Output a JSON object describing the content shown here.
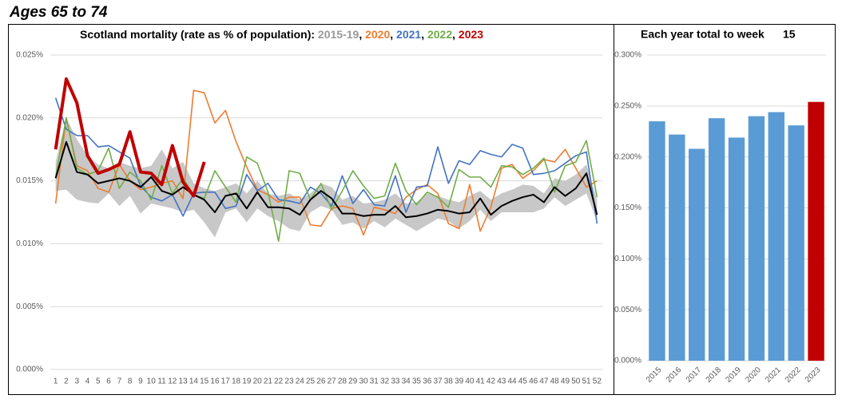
{
  "page_title": "Ages 65 to 74",
  "chart_data": [
    {
      "type": "line",
      "title": "Scotland mortality (rate as % of population):",
      "legend_separator": ", ",
      "categories": [
        1,
        2,
        3,
        4,
        5,
        6,
        7,
        8,
        9,
        10,
        11,
        12,
        13,
        14,
        15,
        16,
        17,
        18,
        19,
        20,
        21,
        22,
        23,
        24,
        25,
        26,
        27,
        28,
        29,
        30,
        31,
        32,
        33,
        34,
        35,
        36,
        37,
        38,
        39,
        40,
        41,
        42,
        43,
        44,
        45,
        46,
        47,
        48,
        49,
        50,
        51,
        52
      ],
      "ylim": [
        0,
        0.025
      ],
      "yticks": [
        {
          "value": 0,
          "label": "0.000%"
        },
        {
          "value": 0.005,
          "label": "0.005%"
        },
        {
          "value": 0.01,
          "label": "0.010%"
        },
        {
          "value": 0.015,
          "label": "0.015%"
        },
        {
          "value": 0.02,
          "label": "0.020%"
        },
        {
          "value": 0.025,
          "label": "0.025%"
        }
      ],
      "grid": true,
      "series": [
        {
          "name": "2015-19",
          "color": "#000000",
          "label_color": "#999999",
          "band_color": "#c8c8c8",
          "line_width": 2,
          "values": [
            0.0152,
            0.0181,
            0.0157,
            0.0155,
            0.0148,
            0.015,
            0.0152,
            0.015,
            0.0145,
            0.0153,
            0.0142,
            0.0139,
            0.0145,
            0.0139,
            0.0135,
            0.0125,
            0.0138,
            0.014,
            0.0128,
            0.0141,
            0.0129,
            0.0129,
            0.0128,
            0.0123,
            0.0135,
            0.0142,
            0.0136,
            0.0124,
            0.0124,
            0.0122,
            0.0123,
            0.0123,
            0.013,
            0.0121,
            0.0122,
            0.0124,
            0.0127,
            0.0126,
            0.0124,
            0.0125,
            0.0136,
            0.0123,
            0.013,
            0.0134,
            0.0137,
            0.0139,
            0.0133,
            0.0145,
            0.0138,
            0.0144,
            0.0156,
            0.0123
          ],
          "high": [
            0.0165,
            0.02,
            0.0183,
            0.017,
            0.0163,
            0.016,
            0.0165,
            0.0162,
            0.016,
            0.0162,
            0.0175,
            0.016,
            0.0165,
            0.0148,
            0.0144,
            0.0142,
            0.0145,
            0.0148,
            0.014,
            0.015,
            0.014,
            0.0138,
            0.014,
            0.0135,
            0.014,
            0.0148,
            0.0145,
            0.0135,
            0.0138,
            0.0132,
            0.0133,
            0.0135,
            0.014,
            0.0132,
            0.0133,
            0.014,
            0.0138,
            0.0135,
            0.0133,
            0.0138,
            0.0142,
            0.0135,
            0.014,
            0.0143,
            0.0147,
            0.0146,
            0.014,
            0.0152,
            0.015,
            0.0155,
            0.0163,
            0.0135
          ],
          "low": [
            0.0142,
            0.0143,
            0.0135,
            0.0133,
            0.0132,
            0.014,
            0.013,
            0.0138,
            0.0124,
            0.0132,
            0.013,
            0.0128,
            0.0125,
            0.0127,
            0.0117,
            0.0105,
            0.0125,
            0.0128,
            0.0117,
            0.0128,
            0.0122,
            0.0118,
            0.0112,
            0.011,
            0.0125,
            0.013,
            0.0127,
            0.0115,
            0.0117,
            0.0112,
            0.0118,
            0.0113,
            0.012,
            0.0115,
            0.011,
            0.0115,
            0.012,
            0.0118,
            0.0112,
            0.0118,
            0.0127,
            0.0118,
            0.0125,
            0.0125,
            0.0125,
            0.0125,
            0.0128,
            0.0137,
            0.013,
            0.0135,
            0.014,
            0.0118
          ]
        },
        {
          "name": "2020",
          "color": "#ed7d31",
          "line_width": 1.6,
          "values": [
            0.0132,
            0.02,
            0.0162,
            0.0158,
            0.0144,
            0.0141,
            0.0163,
            0.015,
            0.0143,
            0.0145,
            0.0148,
            0.015,
            0.0136,
            0.0222,
            0.022,
            0.0196,
            0.0206,
            0.0181,
            0.0161,
            0.0143,
            0.0139,
            0.0133,
            0.0137,
            0.0137,
            0.0115,
            0.0114,
            0.0128,
            0.013,
            0.0128,
            0.0107,
            0.0129,
            0.0127,
            0.0124,
            0.0137,
            0.0143,
            0.0147,
            0.014,
            0.0116,
            0.0112,
            0.0147,
            0.011,
            0.0129,
            0.016,
            0.0163,
            0.0152,
            0.0158,
            0.0167,
            0.0165,
            0.0175,
            0.016,
            0.0145,
            0.015
          ]
        },
        {
          "name": "2021",
          "color": "#4472c4",
          "line_width": 1.6,
          "values": [
            0.0216,
            0.0191,
            0.0186,
            0.0186,
            0.0177,
            0.0178,
            0.0173,
            0.0168,
            0.0146,
            0.0137,
            0.0134,
            0.0139,
            0.0122,
            0.014,
            0.0141,
            0.0141,
            0.0128,
            0.013,
            0.0155,
            0.0142,
            0.0148,
            0.0135,
            0.0134,
            0.0132,
            0.0145,
            0.014,
            0.013,
            0.0154,
            0.0132,
            0.0143,
            0.0131,
            0.013,
            0.0154,
            0.0125,
            0.0145,
            0.0146,
            0.0177,
            0.0148,
            0.0166,
            0.0163,
            0.0174,
            0.0171,
            0.0169,
            0.0179,
            0.0176,
            0.0155,
            0.0156,
            0.0158,
            0.0164,
            0.017,
            0.0173,
            0.0116
          ]
        },
        {
          "name": "2022",
          "color": "#70ad47",
          "line_width": 1.6,
          "values": [
            0.0153,
            0.02,
            0.016,
            0.0155,
            0.0158,
            0.0176,
            0.0144,
            0.0157,
            0.015,
            0.0135,
            0.0162,
            0.014,
            0.0152,
            0.0139,
            0.0136,
            0.0158,
            0.0145,
            0.0133,
            0.0169,
            0.0164,
            0.0141,
            0.0102,
            0.0158,
            0.0156,
            0.0135,
            0.0148,
            0.0127,
            0.0142,
            0.0158,
            0.0146,
            0.0136,
            0.0138,
            0.0164,
            0.0142,
            0.0131,
            0.0141,
            0.0137,
            0.0129,
            0.0159,
            0.0153,
            0.0153,
            0.0145,
            0.0162,
            0.0161,
            0.0155,
            0.016,
            0.0168,
            0.0141,
            0.0162,
            0.0165,
            0.0182,
            0.0137
          ]
        },
        {
          "name": "2023",
          "color": "#c00000",
          "line_width": 4,
          "values": [
            0.0175,
            0.0231,
            0.0212,
            0.017,
            0.0156,
            0.0159,
            0.0163,
            0.0189,
            0.0157,
            0.0156,
            0.0147,
            0.0178,
            0.0149,
            0.0138,
            0.0165,
            null,
            null,
            null,
            null,
            null,
            null,
            null,
            null,
            null,
            null,
            null,
            null,
            null,
            null,
            null,
            null,
            null,
            null,
            null,
            null,
            null,
            null,
            null,
            null,
            null,
            null,
            null,
            null,
            null,
            null,
            null,
            null,
            null,
            null,
            null,
            null,
            null
          ]
        }
      ]
    },
    {
      "type": "bar",
      "title": "Each year total to week",
      "title_week": 15,
      "categories": [
        "2015",
        "2016",
        "2017",
        "2018",
        "2019",
        "2020",
        "2021",
        "2022",
        "2023"
      ],
      "values": [
        0.235,
        0.222,
        0.208,
        0.238,
        0.219,
        0.24,
        0.244,
        0.231,
        0.254
      ],
      "colors": [
        "#5b9bd5",
        "#5b9bd5",
        "#5b9bd5",
        "#5b9bd5",
        "#5b9bd5",
        "#5b9bd5",
        "#5b9bd5",
        "#5b9bd5",
        "#c00000"
      ],
      "ylim": [
        0,
        0.3
      ],
      "yticks": [
        {
          "value": 0,
          "label": "0.000%"
        },
        {
          "value": 0.05,
          "label": "0.050%"
        },
        {
          "value": 0.1,
          "label": "0.100%"
        },
        {
          "value": 0.15,
          "label": "0.150%"
        },
        {
          "value": 0.2,
          "label": "0.200%"
        },
        {
          "value": 0.25,
          "label": "0.250%"
        },
        {
          "value": 0.3,
          "label": "0.300%"
        }
      ],
      "grid": true
    }
  ]
}
